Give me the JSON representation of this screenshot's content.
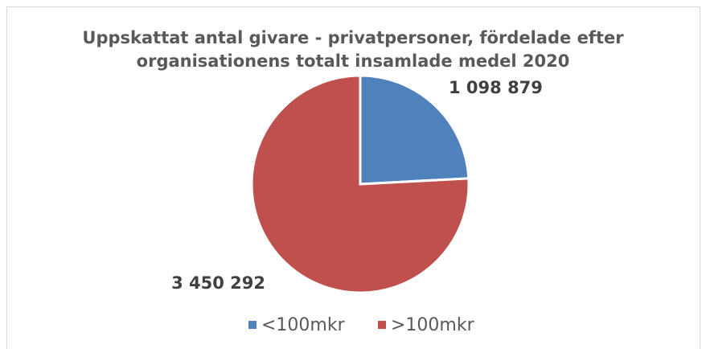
{
  "chart_data": {
    "type": "pie",
    "title": "Uppskattat antal givare - privatpersoner, fördelade efter organisationens totalt insamlade medel 2020",
    "categories": [
      "<100mkr",
      ">100mkr"
    ],
    "values": [
      1098879,
      3450292
    ],
    "value_labels": [
      "1 098 879",
      "3 450 292"
    ],
    "colors": [
      "#4f81bd",
      "#c0504d"
    ],
    "legend": "bottom"
  }
}
